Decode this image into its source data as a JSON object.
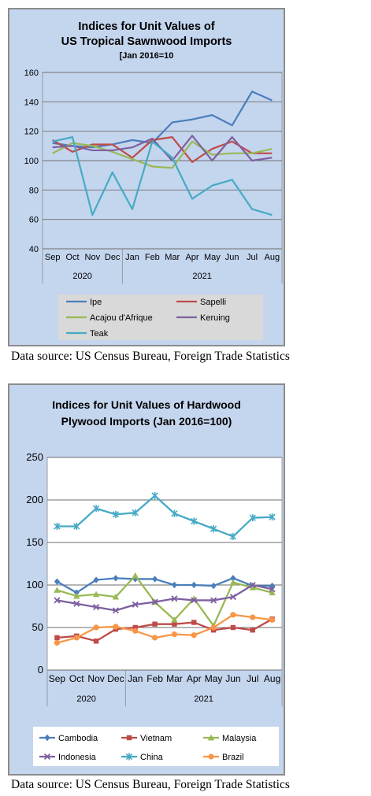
{
  "chart_data": [
    {
      "type": "line",
      "title": "Indices for Unit Values of US Tropical Sawnwood Imports",
      "subtitle": "[Jan 2016=10",
      "x": [
        "Sep",
        "Oct",
        "Nov",
        "Dec",
        "Jan",
        "Feb",
        "Mar",
        "Apr",
        "May",
        "Jun",
        "Jul",
        "Aug"
      ],
      "year_groups": [
        {
          "label": "2020",
          "months": 4
        },
        {
          "label": "2021",
          "months": 8
        }
      ],
      "ylim": [
        40,
        160
      ],
      "yticks": [
        "40",
        "60",
        "80",
        "100",
        "120",
        "140",
        "160"
      ],
      "grid": true,
      "legend_position": "bottom",
      "series": [
        {
          "name": "Ipe",
          "color": "#4a7ebb",
          "marker": "none",
          "values": [
            112,
            110,
            109,
            111,
            114,
            112,
            126,
            128,
            131,
            124,
            147,
            141
          ]
        },
        {
          "name": "Sapelli",
          "color": "#be4b48",
          "marker": "none",
          "values": [
            114,
            106,
            111,
            111,
            102,
            114,
            116,
            99,
            108,
            113,
            105,
            105
          ]
        },
        {
          "name": "Acajou d'Afrique",
          "color": "#98b954",
          "marker": "none",
          "values": [
            105,
            112,
            110,
            106,
            101,
            96,
            95,
            113,
            104,
            105,
            105,
            108
          ]
        },
        {
          "name": "Keruing",
          "color": "#7d60a0",
          "marker": "none",
          "values": [
            109,
            110,
            107,
            107,
            109,
            115,
            100,
            117,
            100,
            116,
            100,
            102
          ]
        },
        {
          "name": "Teak",
          "color": "#46aac5",
          "marker": "none",
          "values": [
            113,
            116,
            63,
            92,
            67,
            113,
            102,
            74,
            83,
            87,
            67,
            63
          ]
        }
      ]
    },
    {
      "type": "line",
      "title": "Indices for Unit Values of Hardwood Plywood Imports (Jan 2016=100)",
      "subtitle": "",
      "x": [
        "Sep",
        "Oct",
        "Nov",
        "Dec",
        "Jan",
        "Feb",
        "Mar",
        "Apr",
        "May",
        "Jun",
        "Jul",
        "Aug"
      ],
      "year_groups": [
        {
          "label": "2020",
          "months": 4
        },
        {
          "label": "2021",
          "months": 8
        }
      ],
      "ylim": [
        0,
        250
      ],
      "yticks": [
        "0",
        "50",
        "100",
        "150",
        "200",
        "250"
      ],
      "grid": true,
      "legend_position": "bottom",
      "series": [
        {
          "name": "Cambodia",
          "color": "#4a7ebb",
          "marker": "diamond",
          "values": [
            104,
            91,
            106,
            108,
            107,
            107,
            100,
            100,
            99,
            108,
            99,
            99
          ]
        },
        {
          "name": "Vietnam",
          "color": "#be4b48",
          "marker": "square",
          "values": [
            38,
            40,
            34,
            48,
            50,
            54,
            54,
            56,
            47,
            50,
            47,
            60
          ]
        },
        {
          "name": "Malaysia",
          "color": "#98b954",
          "marker": "triangle",
          "values": [
            94,
            87,
            89,
            86,
            111,
            80,
            59,
            84,
            52,
            103,
            97,
            91
          ]
        },
        {
          "name": "Indonesia",
          "color": "#7d60a0",
          "marker": "x",
          "values": [
            82,
            78,
            74,
            70,
            77,
            80,
            84,
            82,
            82,
            86,
            100,
            95
          ]
        },
        {
          "name": "China",
          "color": "#46aac5",
          "marker": "star",
          "values": [
            169,
            169,
            190,
            183,
            185,
            205,
            184,
            175,
            166,
            157,
            179,
            180
          ]
        },
        {
          "name": "Brazil",
          "color": "#f79646",
          "marker": "circle",
          "values": [
            32,
            38,
            50,
            51,
            46,
            38,
            42,
            41,
            50,
            65,
            62,
            59
          ]
        }
      ]
    }
  ],
  "sources": [
    "Data source: US Census Bureau, Foreign Trade Statistics",
    "Data source: US Census Bureau, Foreign Trade Statistics"
  ]
}
